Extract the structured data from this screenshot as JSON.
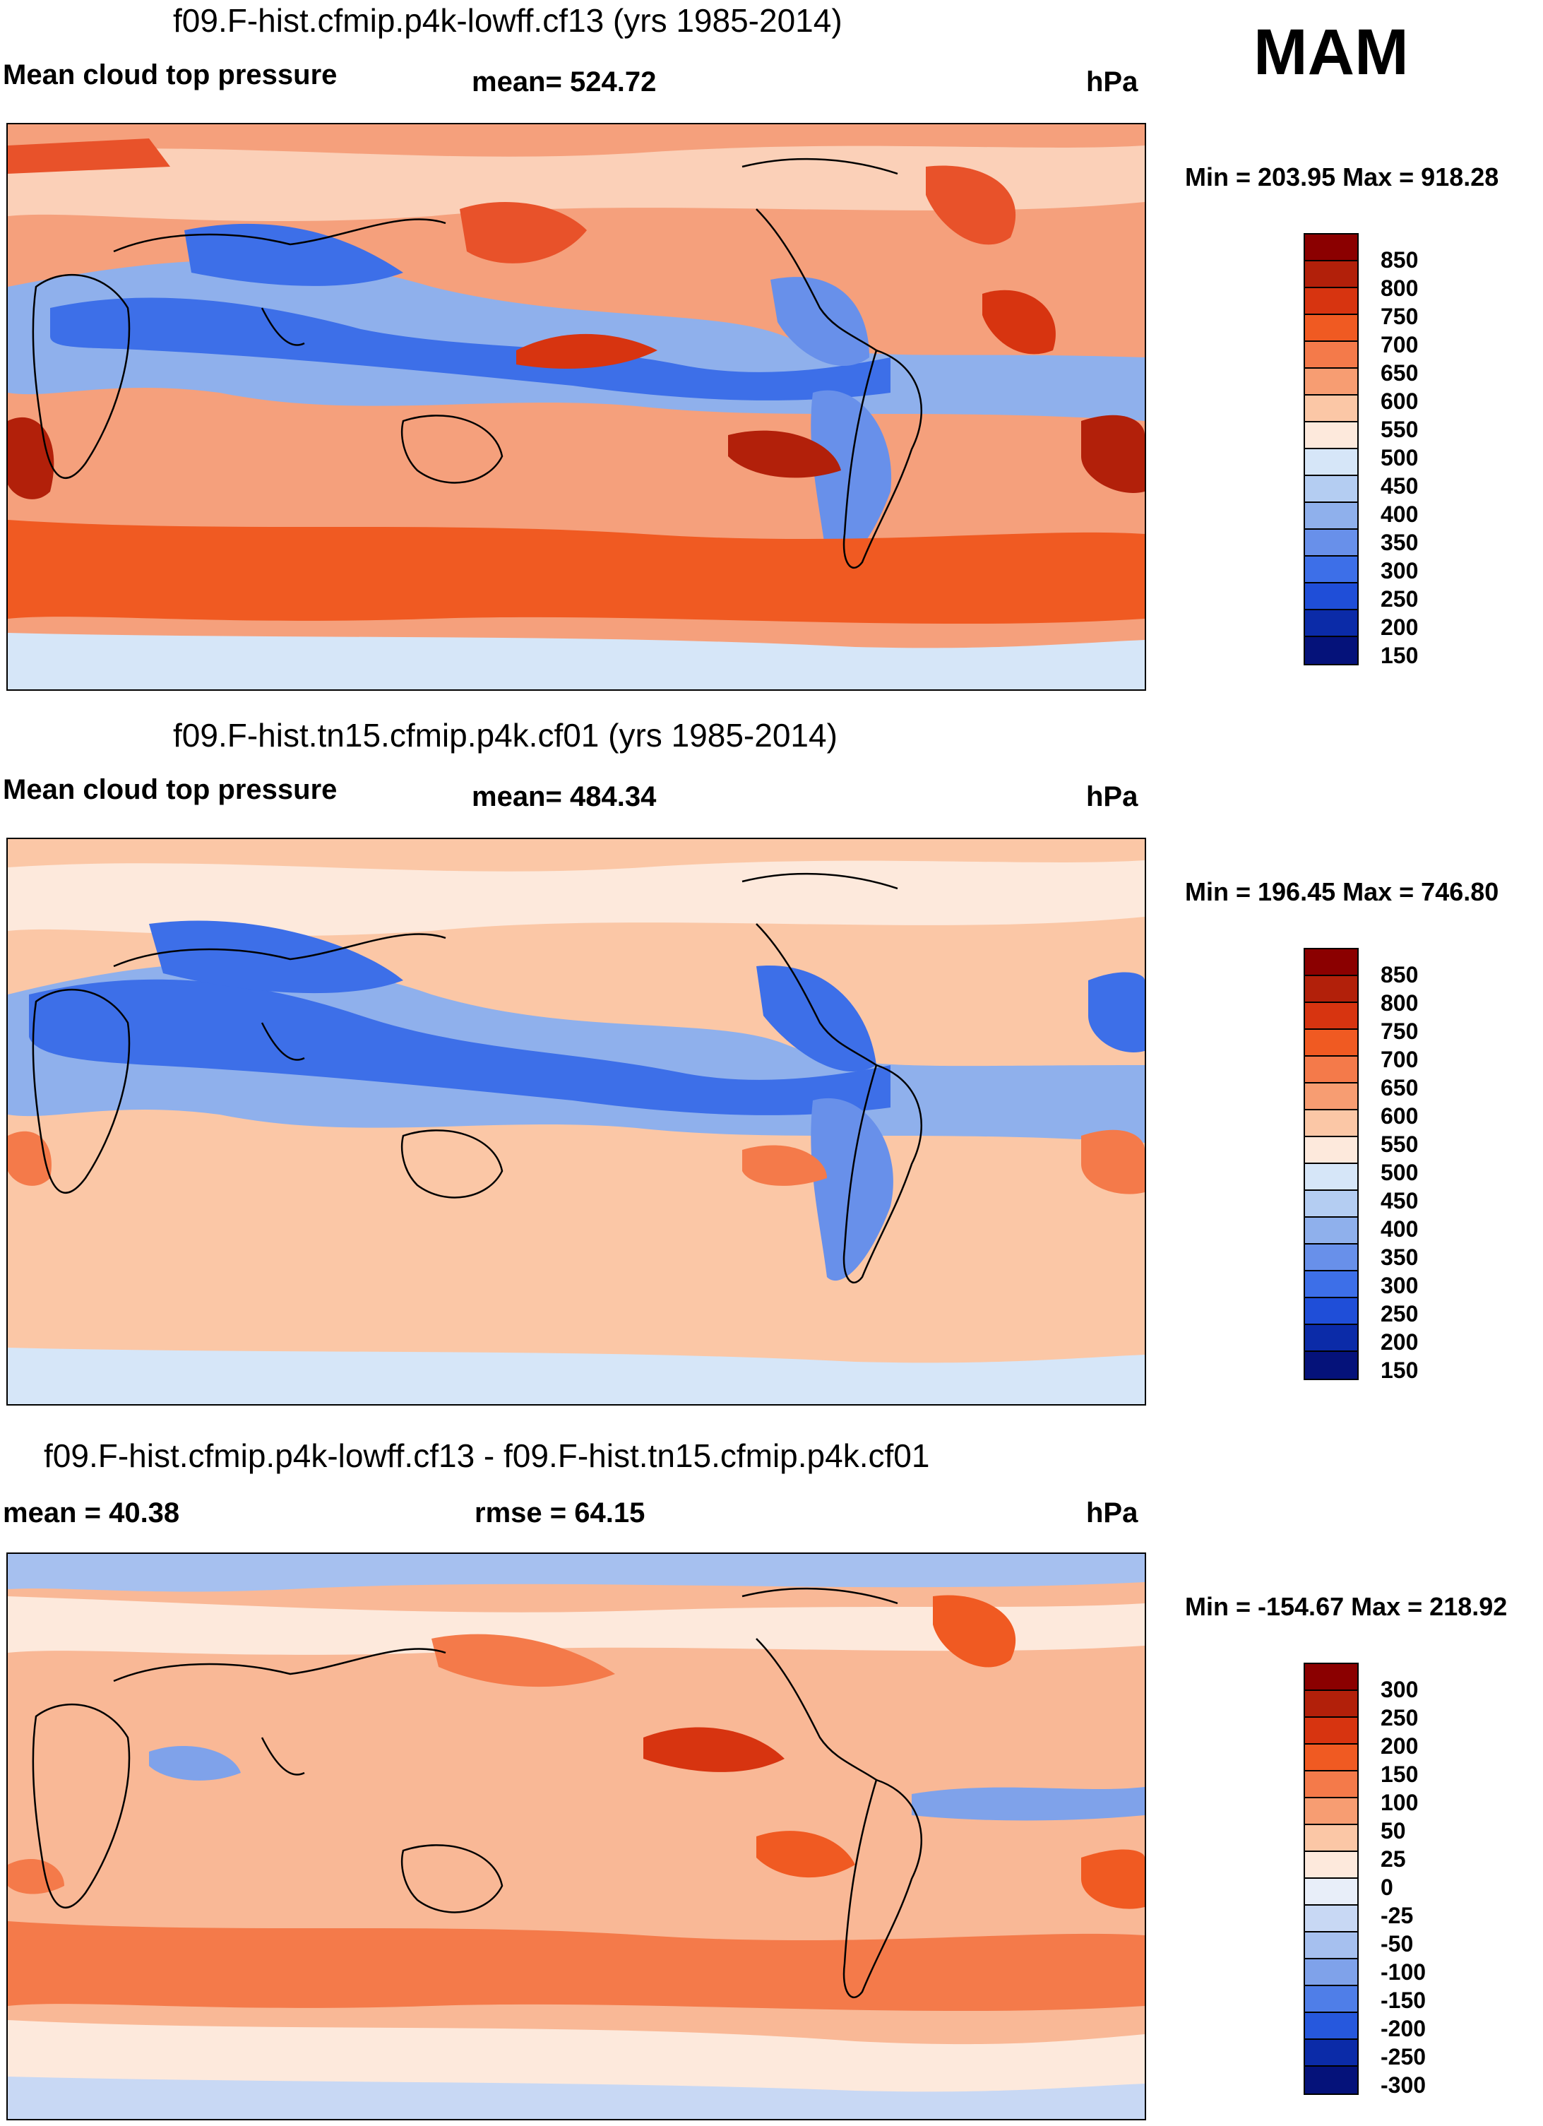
{
  "season": "MAM",
  "panels": [
    {
      "title": "f09.F-hist.cfmip.p4k-lowff.cf13 (yrs 1985-2014)",
      "left_label": "Mean cloud top pressure",
      "center_label": "mean= 524.72",
      "units": "hPa",
      "minmax": "Min = 203.95 Max = 918.28",
      "colorbar_labels": [
        "850",
        "800",
        "750",
        "700",
        "650",
        "600",
        "550",
        "500",
        "450",
        "400",
        "350",
        "300",
        "250",
        "200",
        "150"
      ],
      "colorbar_colors": [
        "#8b0000",
        "#b2200a",
        "#d73410",
        "#f05a22",
        "#f47a4a",
        "#f79d72",
        "#fbc7a6",
        "#fde9dc",
        "#d6e6f8",
        "#b4cdf2",
        "#8fb0ec",
        "#6890ea",
        "#3d6fe8",
        "#1f4ed8",
        "#0b2ba8",
        "#05127a"
      ]
    },
    {
      "title": "f09.F-hist.tn15.cfmip.p4k.cf01 (yrs 1985-2014)",
      "left_label": "Mean cloud top pressure",
      "center_label": "mean= 484.34",
      "units": "hPa",
      "minmax": "Min = 196.45 Max = 746.80",
      "colorbar_labels": [
        "850",
        "800",
        "750",
        "700",
        "650",
        "600",
        "550",
        "500",
        "450",
        "400",
        "350",
        "300",
        "250",
        "200",
        "150"
      ],
      "colorbar_colors": [
        "#8b0000",
        "#b2200a",
        "#d73410",
        "#f05a22",
        "#f47a4a",
        "#f79d72",
        "#fbc7a6",
        "#fde9dc",
        "#d6e6f8",
        "#b4cdf2",
        "#8fb0ec",
        "#6890ea",
        "#3d6fe8",
        "#1f4ed8",
        "#0b2ba8",
        "#05127a"
      ]
    },
    {
      "title": "f09.F-hist.cfmip.p4k-lowff.cf13 - f09.F-hist.tn15.cfmip.p4k.cf01",
      "left_label": "mean =  40.38",
      "center_label": "rmse =  64.15",
      "units": "hPa",
      "minmax": "Min = -154.67 Max = 218.92",
      "colorbar_labels": [
        "300",
        "250",
        "200",
        "150",
        "100",
        "50",
        "25",
        "0",
        "-25",
        "-50",
        "-100",
        "-150",
        "-200",
        "-250",
        "-300"
      ],
      "colorbar_colors": [
        "#8b0000",
        "#b2200a",
        "#d73410",
        "#f05a22",
        "#f47a4a",
        "#f79d72",
        "#fbc7a6",
        "#fde9dc",
        "#e8eef9",
        "#c8d8f4",
        "#a6c0ef",
        "#7fa2ea",
        "#4f7ee8",
        "#2658dd",
        "#0b2ba8",
        "#05127a"
      ]
    }
  ]
}
